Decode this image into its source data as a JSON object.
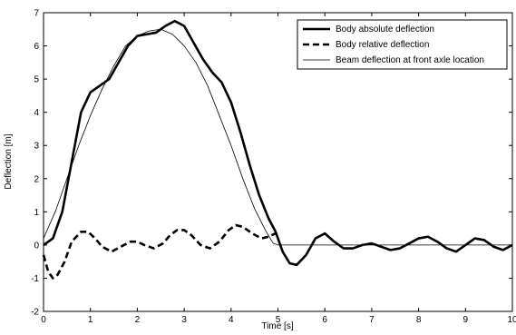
{
  "chart_data": {
    "type": "line",
    "xlabel": "Time [s]",
    "ylabel": "Deflection [m]",
    "xlim": [
      0,
      10
    ],
    "ylim": [
      -2,
      7
    ],
    "xticks": [
      "0",
      "1",
      "2",
      "3",
      "4",
      "5",
      "6",
      "7",
      "8",
      "9",
      "10"
    ],
    "yticks": [
      "-2",
      "-1",
      "0",
      "1",
      "2",
      "3",
      "4",
      "5",
      "6",
      "7"
    ],
    "grid": false,
    "legend_position": "top-right",
    "series": [
      {
        "name": "Body absolute deflection",
        "style": "thick-solid",
        "x": [
          0,
          0.2,
          0.4,
          0.6,
          0.8,
          1.0,
          1.2,
          1.4,
          1.6,
          1.8,
          2.0,
          2.2,
          2.4,
          2.6,
          2.8,
          3.0,
          3.2,
          3.4,
          3.6,
          3.8,
          4.0,
          4.2,
          4.4,
          4.6,
          4.8,
          4.95,
          5.1,
          5.25,
          5.4,
          5.6,
          5.8,
          6.0,
          6.2,
          6.4,
          6.6,
          6.8,
          7.0,
          7.2,
          7.4,
          7.6,
          7.8,
          8.0,
          8.2,
          8.4,
          8.6,
          8.8,
          9.0,
          9.2,
          9.4,
          9.6,
          9.8,
          10.0
        ],
        "values": [
          0.0,
          0.2,
          1.0,
          2.5,
          4.0,
          4.6,
          4.8,
          5.0,
          5.5,
          6.0,
          6.3,
          6.35,
          6.4,
          6.6,
          6.75,
          6.6,
          6.1,
          5.6,
          5.2,
          4.9,
          4.3,
          3.4,
          2.4,
          1.5,
          0.8,
          0.4,
          -0.2,
          -0.55,
          -0.6,
          -0.3,
          0.2,
          0.35,
          0.1,
          -0.1,
          -0.1,
          0.0,
          0.05,
          -0.05,
          -0.15,
          -0.1,
          0.05,
          0.2,
          0.25,
          0.1,
          -0.1,
          -0.2,
          0.0,
          0.2,
          0.15,
          -0.05,
          -0.15,
          0.0
        ]
      },
      {
        "name": "Body relative deflection",
        "style": "thick-dashed",
        "x": [
          0,
          0.1,
          0.2,
          0.3,
          0.45,
          0.6,
          0.8,
          0.95,
          1.1,
          1.25,
          1.45,
          1.65,
          1.85,
          2.0,
          2.15,
          2.35,
          2.55,
          2.7,
          2.85,
          3.0,
          3.15,
          3.35,
          3.55,
          3.75,
          3.95,
          4.1,
          4.25,
          4.45,
          4.65,
          4.8,
          4.95
        ],
        "values": [
          -0.3,
          -0.8,
          -1.0,
          -0.9,
          -0.5,
          0.1,
          0.4,
          0.4,
          0.2,
          -0.05,
          -0.2,
          -0.05,
          0.1,
          0.1,
          0.0,
          -0.1,
          0.05,
          0.3,
          0.45,
          0.45,
          0.3,
          0.0,
          -0.1,
          0.1,
          0.45,
          0.6,
          0.55,
          0.35,
          0.2,
          0.25,
          0.35
        ]
      },
      {
        "name": "Beam deflection at front axle location",
        "style": "thin-solid",
        "x": [
          0,
          0.25,
          0.5,
          0.75,
          1.0,
          1.25,
          1.5,
          1.75,
          2.0,
          2.25,
          2.5,
          2.75,
          3.0,
          3.25,
          3.5,
          3.75,
          4.0,
          4.25,
          4.5,
          4.75,
          4.9,
          5.0,
          10.0
        ],
        "values": [
          0.2,
          1.0,
          2.0,
          3.0,
          3.9,
          4.7,
          5.4,
          6.0,
          6.3,
          6.45,
          6.5,
          6.35,
          6.0,
          5.5,
          4.8,
          3.9,
          3.0,
          2.0,
          1.1,
          0.4,
          0.05,
          0.0,
          0.0
        ]
      }
    ]
  }
}
